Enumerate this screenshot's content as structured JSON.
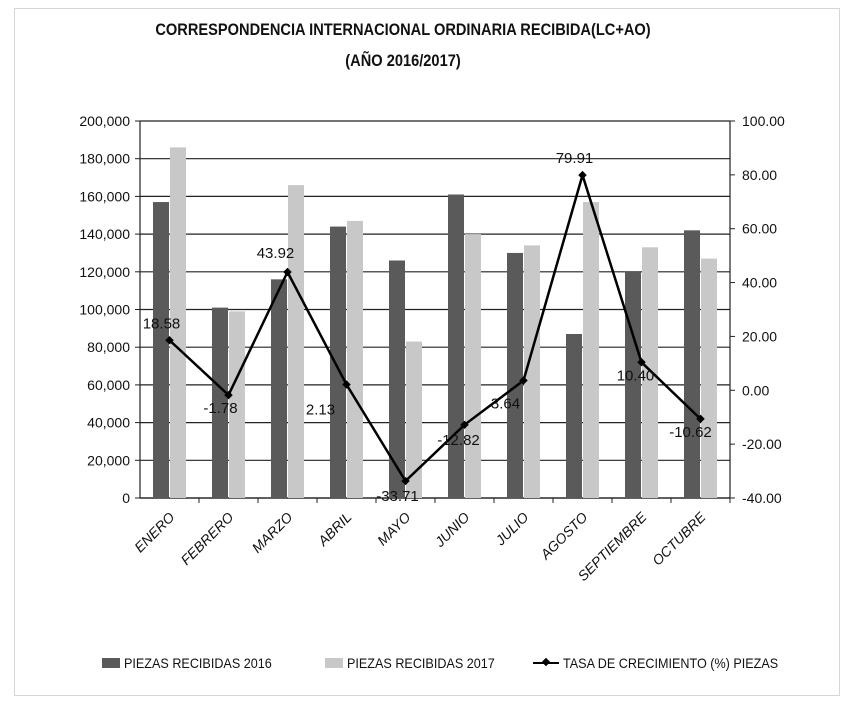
{
  "title_line1": "CORRESPONDENCIA INTERNACIONAL ORDINARIA RECIBIDA(LC+AO)",
  "title_line2": "(AÑO 2016/2017)",
  "chart_data": {
    "type": "bar",
    "categories": [
      "ENERO",
      "FEBRERO",
      "MARZO",
      "ABRIL",
      "MAYO",
      "JUNIO",
      "JULIO",
      "AGOSTO",
      "SEPTIEMBRE",
      "OCTUBRE"
    ],
    "series": [
      {
        "name": "PIEZAS RECIBIDAS 2016",
        "type": "bar",
        "axis": "left",
        "color": "#5a5a5a",
        "values": [
          157000,
          101000,
          116000,
          144000,
          126000,
          161000,
          130000,
          87000,
          120000,
          142000
        ]
      },
      {
        "name": "PIEZAS RECIBIDAS 2017",
        "type": "bar",
        "axis": "left",
        "color": "#c8c8c8",
        "values": [
          186000,
          99000,
          166000,
          147000,
          83000,
          140000,
          134000,
          157000,
          133000,
          127000
        ]
      },
      {
        "name": "TASA DE CRECIMIENTO (%) PIEZAS",
        "type": "line",
        "axis": "right",
        "color": "#000000",
        "values": [
          18.58,
          -1.78,
          43.92,
          2.13,
          -33.71,
          -12.82,
          3.64,
          79.91,
          10.4,
          -10.62
        ],
        "labels": [
          "18.58",
          "-1.78",
          "43.92",
          "2.13",
          "-33.71",
          "-12.82",
          "3.64",
          "79.91",
          "10.40",
          "-10.62"
        ]
      }
    ],
    "ylim_left": [
      0,
      200000
    ],
    "yticks_left": [
      "0",
      "20,000",
      "40,000",
      "60,000",
      "80,000",
      "100,000",
      "120,000",
      "140,000",
      "160,000",
      "180,000",
      "200,000"
    ],
    "ylim_right": [
      -40,
      100
    ],
    "yticks_right": [
      "-40.00",
      "-20.00",
      "0.00",
      "20.00",
      "40.00",
      "60.00",
      "80.00",
      "100.00"
    ],
    "grid": true,
    "legend_position": "bottom"
  }
}
